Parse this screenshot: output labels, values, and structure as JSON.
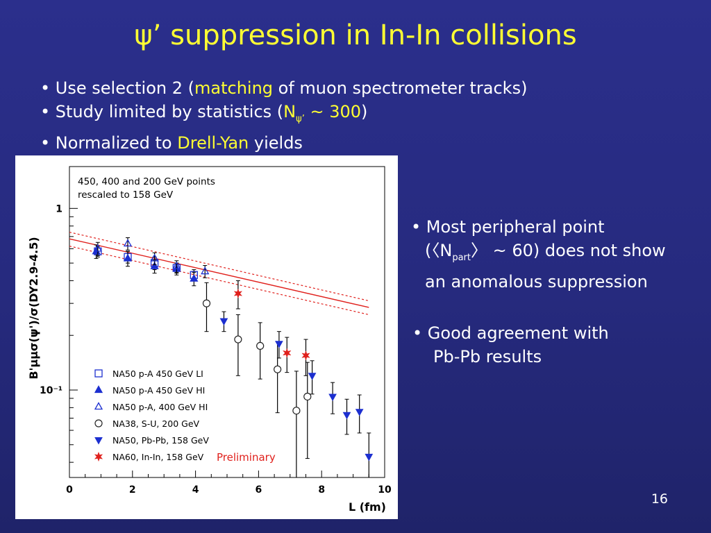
{
  "slide": {
    "title_psi": "ψ’",
    "title_rest": " suppression in In-In collisions",
    "bullet1_pre": "• Use selection 2 (",
    "bullet1_hl": "matching",
    "bullet1_post": " of muon spectrometer tracks)",
    "bullet2_pre": "• Study limited by statistics (",
    "bullet2_n": "N",
    "bullet2_sub": "ψ’",
    "bullet2_hl": " ~ 300",
    "bullet2_post": ")",
    "bullet3_pre": "• Normalized to ",
    "bullet3_hl": "Drell-Yan",
    "bullet3_post": " yields",
    "note1_line1": "• Most peripheral point",
    "note1_line2_pre": "(〈N",
    "note1_line2_sub": "part",
    "note1_line2_post": "〉 ~ 60) does not show",
    "note1_line3": "an anomalous suppression",
    "note2_line1": "• Good agreement with",
    "note2_line2": "Pb-Pb results",
    "page_number": "16"
  },
  "chart_data": {
    "type": "scatter",
    "yscale": "log",
    "xlim": [
      0,
      10
    ],
    "ylim": [
      0.033,
      1.7
    ],
    "x_ticks": [
      "0",
      "2",
      "4",
      "6",
      "8",
      "10"
    ],
    "y_ticks": [
      "1",
      "10⁻¹"
    ],
    "xlabel": "L (fm)",
    "ylabel": "B'μμσ(ψ')/σ(DY2.9-4.5)",
    "annotation": "450, 400 and 200 GeV points rescaled to 158 GeV",
    "annotation_line1": "450, 400 and 200 GeV points",
    "annotation_line2": "rescaled to 158 GeV",
    "preliminary_label": "Preliminary",
    "legend_position": "bottom-left",
    "fit": {
      "x": [
        0.0,
        9.5
      ],
      "central": [
        0.68,
        0.285
      ],
      "upper": [
        0.74,
        0.31
      ],
      "lower": [
        0.62,
        0.26
      ],
      "color": "#e0201c"
    },
    "series": [
      {
        "name": "NA50 p-A 450 GeV LI",
        "marker": "square-open",
        "color": "#1c2fd0",
        "points": [
          [
            0.9,
            0.58,
            0.04
          ],
          [
            1.85,
            0.54,
            0.04
          ],
          [
            2.7,
            0.5,
            0.04
          ],
          [
            3.4,
            0.47,
            0.03
          ],
          [
            3.95,
            0.43,
            0.03
          ]
        ]
      },
      {
        "name": "NA50 p-A 450 GeV HI",
        "marker": "triangle-up-filled",
        "color": "#1c2fd0",
        "points": [
          [
            0.85,
            0.58,
            0.05
          ],
          [
            1.85,
            0.53,
            0.05
          ],
          [
            2.7,
            0.48,
            0.04
          ],
          [
            3.4,
            0.465,
            0.035
          ],
          [
            3.95,
            0.41,
            0.035
          ]
        ]
      },
      {
        "name": "NA50 p-A, 400 GeV HI",
        "marker": "triangle-up-open",
        "color": "#1c2fd0",
        "points": [
          [
            0.9,
            0.6,
            0.05
          ],
          [
            1.85,
            0.64,
            0.05
          ],
          [
            2.7,
            0.53,
            0.04
          ],
          [
            3.4,
            0.48,
            0.035
          ],
          [
            4.3,
            0.45,
            0.035
          ]
        ]
      },
      {
        "name": "NA38, S-U, 200 GeV",
        "marker": "circle-open",
        "color": "#222222",
        "points": [
          [
            4.35,
            0.3,
            0.09
          ],
          [
            5.35,
            0.19,
            0.07
          ],
          [
            6.05,
            0.175,
            0.06
          ],
          [
            6.6,
            0.13,
            0.055
          ],
          [
            7.2,
            0.077,
            0.05
          ],
          [
            7.55,
            0.092,
            0.05
          ]
        ]
      },
      {
        "name": "NA50, Pb-Pb, 158 GeV",
        "marker": "triangle-down-filled",
        "color": "#1c2fd0",
        "points": [
          [
            4.9,
            0.24,
            0.03
          ],
          [
            6.65,
            0.18,
            0.03
          ],
          [
            7.7,
            0.12,
            0.025
          ],
          [
            8.35,
            0.092,
            0.018
          ],
          [
            8.8,
            0.073,
            0.016
          ],
          [
            9.2,
            0.076,
            0.018
          ],
          [
            9.5,
            0.043,
            0.015
          ]
        ]
      },
      {
        "name": "NA60, In-In, 158 GeV",
        "marker": "star",
        "color": "#e0201c",
        "points": [
          [
            5.35,
            0.34,
            0.06
          ],
          [
            6.9,
            0.16,
            0.035
          ],
          [
            7.5,
            0.155,
            0.035
          ]
        ]
      }
    ]
  }
}
